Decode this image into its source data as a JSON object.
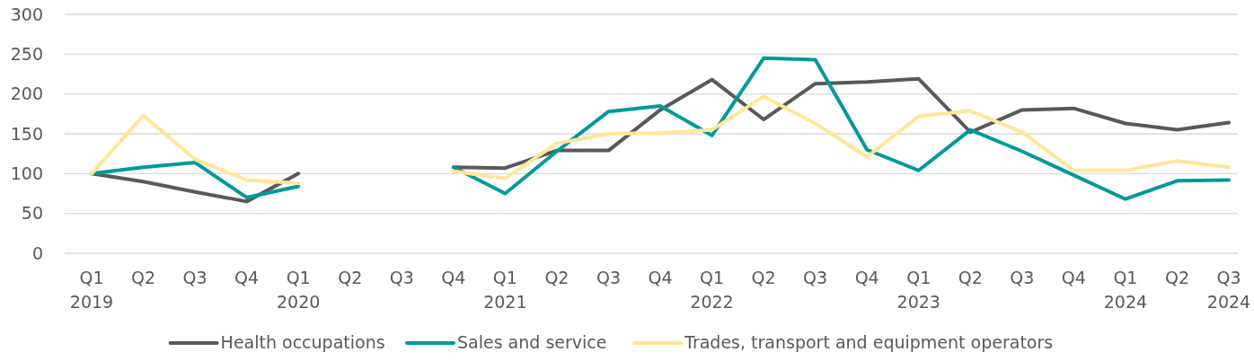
{
  "chart_data": {
    "type": "line",
    "categories": [
      "Q1\n2019",
      "Q2",
      "Q3",
      "Q4",
      "Q1\n2020",
      "Q2",
      "Q3",
      "Q4",
      "Q1\n2021",
      "Q2",
      "Q3",
      "Q4",
      "Q1\n2022",
      "Q2",
      "Q3",
      "Q4",
      "Q1\n2023",
      "Q2",
      "Q3",
      "Q4",
      "Q1\n2024",
      "Q2",
      "Q3\n2024"
    ],
    "series": [
      {
        "name": "Health occupations",
        "color": "#595959",
        "values": [
          100,
          90,
          77,
          65,
          100,
          null,
          null,
          108,
          107,
          129,
          129,
          180,
          218,
          168,
          213,
          215,
          219,
          152,
          180,
          182,
          163,
          155,
          164
        ]
      },
      {
        "name": "Sales and service",
        "color": "#009999",
        "values": [
          100,
          108,
          114,
          70,
          84,
          null,
          null,
          108,
          75,
          128,
          178,
          185,
          148,
          245,
          243,
          130,
          104,
          155,
          128,
          98,
          68,
          91,
          92
        ]
      },
      {
        "name": "Trades, transport and equipment operators",
        "color": "#ffe699",
        "values": [
          100,
          173,
          118,
          92,
          88,
          null,
          null,
          103,
          94,
          138,
          150,
          151,
          155,
          197,
          163,
          121,
          172,
          179,
          152,
          104,
          104,
          116,
          108
        ]
      }
    ],
    "ylim": [
      0,
      300
    ],
    "yticks": [
      0,
      50,
      100,
      150,
      200,
      250,
      300
    ],
    "grid": "y",
    "legend": "bottom",
    "marker": "none",
    "line_style": "solid"
  }
}
